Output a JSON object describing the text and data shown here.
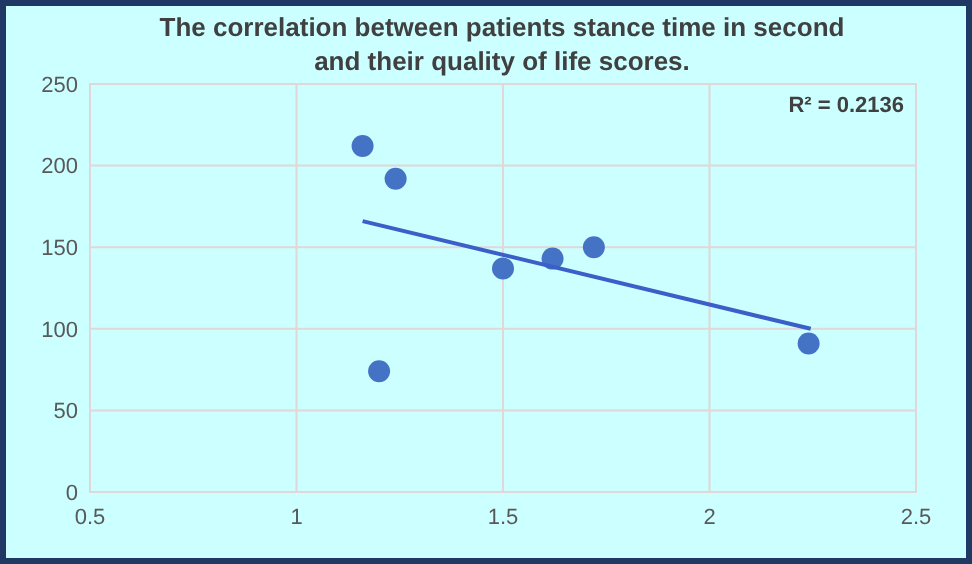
{
  "chart_data": {
    "type": "scatter",
    "title": "The correlation between patients stance time in second and their quality of life scores.",
    "annotations": [
      "R² = 0.2136"
    ],
    "series": [
      {
        "color": "#4472c4",
        "marker": "circle",
        "x": [
          1.16,
          1.24,
          1.2,
          1.5,
          1.62,
          1.72,
          2.24
        ],
        "values": [
          212,
          192,
          74,
          137,
          143,
          150,
          91
        ]
      },
      {
        "type": "line",
        "color": "#3a5fc8",
        "marker": "none",
        "x": [
          1.16,
          2.245
        ],
        "values": [
          166,
          100
        ]
      }
    ],
    "xlim": [
      0.5,
      2.5
    ],
    "xticks": [
      0.5,
      1,
      1.5,
      2,
      2.5
    ],
    "ylim": [
      0,
      250
    ],
    "yticks": [
      0,
      50,
      100,
      150,
      200,
      250
    ],
    "grid": true,
    "line_style": "solid"
  }
}
